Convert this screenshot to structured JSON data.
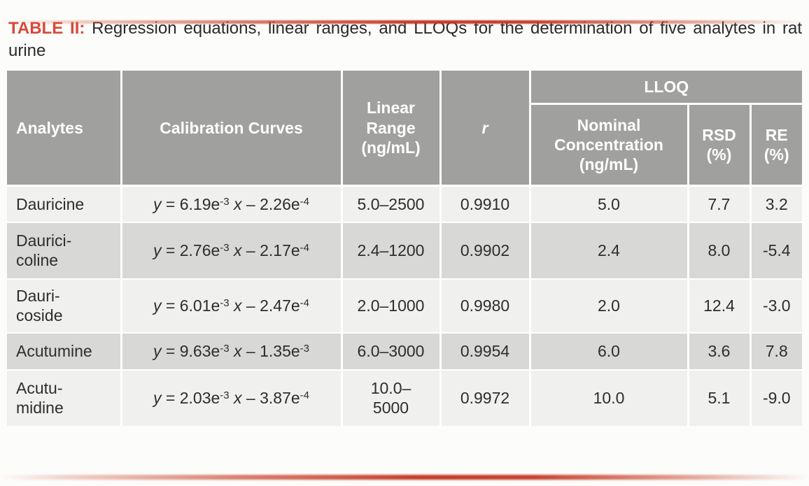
{
  "caption": {
    "label": "TABLE II:",
    "text": " Regression equations, linear ranges, and LLOQs for the determination of five analytes in rat urine"
  },
  "colors": {
    "accent_red": "#d8493b",
    "gradient_bar_red": "#c43723",
    "header_gray": "#a0a09e",
    "row_light": "#f0f0ee",
    "row_dark": "#d8d8d6",
    "header_text": "#ffffff",
    "body_text": "#2d2d2d"
  },
  "table": {
    "headers": {
      "analytes": "Analytes",
      "calibration": "Calibration Curves",
      "linear_range": "Linear\nRange\n(ng/mL)",
      "r": "r",
      "lloq": "LLOQ",
      "nominal": "Nominal\nConcentration\n(ng/mL)",
      "rsd": "RSD\n(%)",
      "re": "RE\n(%)"
    },
    "rows": [
      {
        "analyte": "Dauricine",
        "equation": [
          {
            "t": "y",
            "i": true
          },
          {
            "t": " = "
          },
          {
            "t": "6.19e"
          },
          {
            "t": "-3",
            "sup": true
          },
          {
            "t": " "
          },
          {
            "t": "x",
            "i": true
          },
          {
            "t": " – "
          },
          {
            "t": "2.26e"
          },
          {
            "t": "-4",
            "sup": true
          }
        ],
        "linear_range": "5.0–2500",
        "r": "0.9910",
        "nominal": "5.0",
        "rsd": "7.7",
        "re": "3.2"
      },
      {
        "analyte": "Daurici-\ncoline",
        "equation": [
          {
            "t": "y",
            "i": true
          },
          {
            "t": " = "
          },
          {
            "t": "2.76e"
          },
          {
            "t": "-3",
            "sup": true
          },
          {
            "t": " "
          },
          {
            "t": "x",
            "i": true
          },
          {
            "t": " – "
          },
          {
            "t": "2.17e"
          },
          {
            "t": "-4",
            "sup": true
          }
        ],
        "linear_range": "2.4–1200",
        "r": "0.9902",
        "nominal": "2.4",
        "rsd": "8.0",
        "re": "-5.4"
      },
      {
        "analyte": "Dauri-\ncoside",
        "equation": [
          {
            "t": "y",
            "i": true
          },
          {
            "t": " = "
          },
          {
            "t": "6.01e"
          },
          {
            "t": "-3",
            "sup": true
          },
          {
            "t": " "
          },
          {
            "t": "x",
            "i": true
          },
          {
            "t": " – "
          },
          {
            "t": "2.47e"
          },
          {
            "t": "-4",
            "sup": true
          }
        ],
        "linear_range": "2.0–1000",
        "r": "0.9980",
        "nominal": "2.0",
        "rsd": "12.4",
        "re": "-3.0"
      },
      {
        "analyte": "Acutumine",
        "equation": [
          {
            "t": "y",
            "i": true
          },
          {
            "t": " = "
          },
          {
            "t": "9.63e"
          },
          {
            "t": "-3",
            "sup": true
          },
          {
            "t": " "
          },
          {
            "t": "x",
            "i": true
          },
          {
            "t": " – "
          },
          {
            "t": "1.35e"
          },
          {
            "t": "-3",
            "sup": true
          }
        ],
        "linear_range": "6.0–3000",
        "r": "0.9954",
        "nominal": "6.0",
        "rsd": "3.6",
        "re": "7.8"
      },
      {
        "analyte": "Acutu-\nmidine",
        "equation": [
          {
            "t": "y",
            "i": true
          },
          {
            "t": " = "
          },
          {
            "t": "2.03e"
          },
          {
            "t": "-3",
            "sup": true
          },
          {
            "t": " "
          },
          {
            "t": "x",
            "i": true
          },
          {
            "t": " – "
          },
          {
            "t": "3.87e"
          },
          {
            "t": "-4",
            "sup": true
          }
        ],
        "linear_range": "10.0–\n5000",
        "r": "0.9972",
        "nominal": "10.0",
        "rsd": "5.1",
        "re": "-9.0"
      }
    ]
  }
}
